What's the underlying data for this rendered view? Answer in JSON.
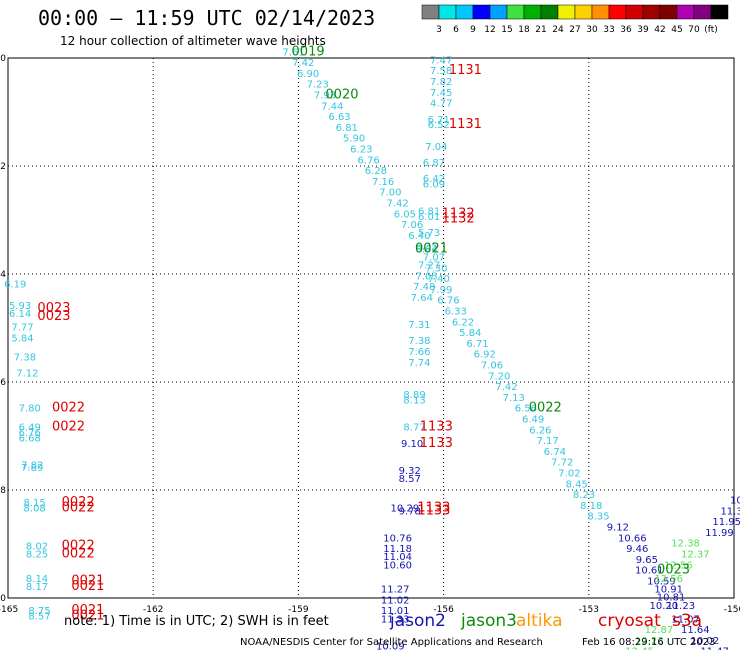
{
  "header": {
    "title": "00:00 — 11:59 UTC 02/14/2023",
    "subtitle": "12 hour collection of altimeter wave heights"
  },
  "colorbar": {
    "swatches": [
      "#808080",
      "#00e5e5",
      "#00c8ff",
      "#0000ff",
      "#00a0ff",
      "#40e040",
      "#00b000",
      "#008000",
      "#f0f000",
      "#ffd000",
      "#ff9000",
      "#ff0000",
      "#d00000",
      "#a00000",
      "#800000",
      "#b000b0",
      "#800080",
      "#000000"
    ],
    "labels": [
      "3",
      "6",
      "9",
      "12",
      "15",
      "18",
      "21",
      "24",
      "27",
      "30",
      "33",
      "36",
      "39",
      "42",
      "45",
      "70",
      "(ft)"
    ]
  },
  "axes": {
    "x_ticks": [
      "-165",
      "-162",
      "-159",
      "-156",
      "-153",
      "-150"
    ],
    "y_ticks": [
      "-40",
      "-42",
      "-44",
      "-46",
      "-48",
      "-50"
    ]
  },
  "colors": {
    "cyan": "#33c6e0",
    "darkblue": "#1414b4",
    "green": "#0a8c0a",
    "red": "#e00000",
    "lightgreen": "#55e055",
    "orange": "#ff9900",
    "magenta": "#cc0000"
  },
  "observations": [
    {
      "lon": -159.1,
      "lat": -39.95,
      "t": "7.61",
      "c": "cyan"
    },
    {
      "lon": -158.9,
      "lat": -40.15,
      "t": "7.42",
      "c": "cyan"
    },
    {
      "lon": -158.8,
      "lat": -40.35,
      "t": "6.90",
      "c": "cyan"
    },
    {
      "lon": -158.6,
      "lat": -40.55,
      "t": "7.23",
      "c": "cyan"
    },
    {
      "lon": -158.45,
      "lat": -40.75,
      "t": "7.93",
      "c": "cyan"
    },
    {
      "lon": -158.3,
      "lat": -40.95,
      "t": "7.44",
      "c": "cyan"
    },
    {
      "lon": -158.15,
      "lat": -41.15,
      "t": "6.63",
      "c": "cyan"
    },
    {
      "lon": -158.0,
      "lat": -41.35,
      "t": "6.81",
      "c": "cyan"
    },
    {
      "lon": -157.85,
      "lat": -41.55,
      "t": "5.90",
      "c": "cyan"
    },
    {
      "lon": -157.7,
      "lat": -41.75,
      "t": "6.23",
      "c": "cyan"
    },
    {
      "lon": -157.55,
      "lat": -41.95,
      "t": "6.76",
      "c": "cyan"
    },
    {
      "lon": -157.4,
      "lat": -42.15,
      "t": "6.28",
      "c": "cyan"
    },
    {
      "lon": -157.25,
      "lat": -42.35,
      "t": "7.16",
      "c": "cyan"
    },
    {
      "lon": -157.1,
      "lat": -42.55,
      "t": "7.00",
      "c": "cyan"
    },
    {
      "lon": -156.95,
      "lat": -42.75,
      "t": "7.42",
      "c": "cyan"
    },
    {
      "lon": -156.8,
      "lat": -42.95,
      "t": "6.05",
      "c": "cyan"
    },
    {
      "lon": -156.65,
      "lat": -43.15,
      "t": "7.06",
      "c": "cyan"
    },
    {
      "lon": -156.5,
      "lat": -43.35,
      "t": "6.40",
      "c": "cyan"
    },
    {
      "lon": -156.35,
      "lat": -43.55,
      "t": "6.35",
      "c": "cyan"
    },
    {
      "lon": -156.2,
      "lat": -43.75,
      "t": "7.07",
      "c": "cyan"
    },
    {
      "lon": -156.15,
      "lat": -43.95,
      "t": "7.30",
      "c": "cyan"
    },
    {
      "lon": -156.1,
      "lat": -44.15,
      "t": "7.40",
      "c": "cyan"
    },
    {
      "lon": -156.05,
      "lat": -44.35,
      "t": "7.99",
      "c": "cyan"
    },
    {
      "lon": -155.9,
      "lat": -44.55,
      "t": "6.76",
      "c": "cyan"
    },
    {
      "lon": -155.75,
      "lat": -44.75,
      "t": "6.33",
      "c": "cyan"
    },
    {
      "lon": -155.6,
      "lat": -44.95,
      "t": "6.22",
      "c": "cyan"
    },
    {
      "lon": -155.45,
      "lat": -45.15,
      "t": "5.84",
      "c": "cyan"
    },
    {
      "lon": -155.3,
      "lat": -45.35,
      "t": "6.71",
      "c": "cyan"
    },
    {
      "lon": -155.15,
      "lat": -45.55,
      "t": "6.92",
      "c": "cyan"
    },
    {
      "lon": -155.0,
      "lat": -45.75,
      "t": "7.06",
      "c": "cyan"
    },
    {
      "lon": -154.85,
      "lat": -45.95,
      "t": "7.20",
      "c": "cyan"
    },
    {
      "lon": -154.7,
      "lat": -46.15,
      "t": "7.42",
      "c": "cyan"
    },
    {
      "lon": -154.55,
      "lat": -46.35,
      "t": "7.13",
      "c": "cyan"
    },
    {
      "lon": -154.3,
      "lat": -46.55,
      "t": "6.56",
      "c": "cyan"
    },
    {
      "lon": -154.15,
      "lat": -46.75,
      "t": "6.49",
      "c": "cyan"
    },
    {
      "lon": -154.0,
      "lat": -46.95,
      "t": "6.26",
      "c": "cyan"
    },
    {
      "lon": -153.85,
      "lat": -47.15,
      "t": "7.17",
      "c": "cyan"
    },
    {
      "lon": -153.7,
      "lat": -47.35,
      "t": "6.74",
      "c": "cyan"
    },
    {
      "lon": -153.55,
      "lat": -47.55,
      "t": "7.72",
      "c": "cyan"
    },
    {
      "lon": -153.4,
      "lat": -47.75,
      "t": "7.02",
      "c": "cyan"
    },
    {
      "lon": -153.25,
      "lat": -47.95,
      "t": "8.45",
      "c": "cyan"
    },
    {
      "lon": -153.1,
      "lat": -48.15,
      "t": "8.23",
      "c": "cyan"
    },
    {
      "lon": -152.95,
      "lat": -48.35,
      "t": "8.18",
      "c": "cyan"
    },
    {
      "lon": -152.8,
      "lat": -48.55,
      "t": "8.35",
      "c": "cyan"
    },
    {
      "lon": -152.4,
      "lat": -48.75,
      "t": "9.12",
      "c": "darkblue"
    },
    {
      "lon": -152.1,
      "lat": -48.95,
      "t": "10.66",
      "c": "darkblue"
    },
    {
      "lon": -152.0,
      "lat": -49.15,
      "t": "9.46",
      "c": "darkblue"
    },
    {
      "lon": -151.8,
      "lat": -49.35,
      "t": "9.65",
      "c": "darkblue"
    },
    {
      "lon": -151.75,
      "lat": -49.55,
      "t": "10.61",
      "c": "darkblue"
    },
    {
      "lon": -151.5,
      "lat": -49.75,
      "t": "10.59",
      "c": "darkblue"
    },
    {
      "lon": -151.35,
      "lat": -49.9,
      "t": "10.91",
      "c": "darkblue"
    },
    {
      "lon": -151.3,
      "lat": -50.05,
      "t": "10.81",
      "c": "darkblue"
    },
    {
      "lon": -151.45,
      "lat": -50.2,
      "t": "10.20",
      "c": "darkblue"
    },
    {
      "lon": -151.1,
      "lat": -50.2,
      "t": "11.23",
      "c": "darkblue"
    },
    {
      "lon": -151.0,
      "lat": -50.45,
      "t": "11.07",
      "c": "darkblue"
    },
    {
      "lon": -150.8,
      "lat": -50.65,
      "t": "11.64",
      "c": "darkblue"
    },
    {
      "lon": -150.6,
      "lat": -50.85,
      "t": "10.02",
      "c": "darkblue"
    },
    {
      "lon": -150.4,
      "lat": -51.05,
      "t": "11.47",
      "c": "darkblue"
    },
    {
      "lon": -152.6,
      "lat": -51.15,
      "t": "11.98",
      "c": "darkblue"
    },
    {
      "lon": -150.3,
      "lat": -48.85,
      "t": "11.99",
      "c": "darkblue"
    },
    {
      "lon": -150.15,
      "lat": -48.65,
      "t": "11.95",
      "c": "darkblue"
    },
    {
      "lon": -150.05,
      "lat": -48.45,
      "t": "11.3",
      "c": "darkblue"
    },
    {
      "lon": -149.95,
      "lat": -48.25,
      "t": "10",
      "c": "darkblue"
    },
    {
      "lon": -151.0,
      "lat": -49.05,
      "t": "12.38",
      "c": "lightgreen"
    },
    {
      "lon": -150.8,
      "lat": -49.25,
      "t": "12.37",
      "c": "lightgreen"
    },
    {
      "lon": -151.15,
      "lat": -49.45,
      "t": "12.56",
      "c": "lightgreen"
    },
    {
      "lon": -151.35,
      "lat": -49.7,
      "t": "12.56",
      "c": "lightgreen"
    },
    {
      "lon": -151.55,
      "lat": -50.65,
      "t": "12.87",
      "c": "lightgreen"
    },
    {
      "lon": -151.75,
      "lat": -50.85,
      "t": "12.23",
      "c": "lightgreen"
    },
    {
      "lon": -151.95,
      "lat": -51.05,
      "t": "12.45",
      "c": "lightgreen"
    },
    {
      "lon": -150.25,
      "lat": -51.25,
      "t": "12.83",
      "c": "lightgreen"
    },
    {
      "lon": -156.05,
      "lat": -40.1,
      "t": "7.47",
      "c": "cyan"
    },
    {
      "lon": -156.05,
      "lat": -40.3,
      "t": "7.58",
      "c": "cyan"
    },
    {
      "lon": -156.05,
      "lat": -40.5,
      "t": "7.82",
      "c": "cyan"
    },
    {
      "lon": -156.05,
      "lat": -40.7,
      "t": "7.45",
      "c": "cyan"
    },
    {
      "lon": -156.05,
      "lat": -40.9,
      "t": "4.77",
      "c": "cyan"
    },
    {
      "lon": -156.1,
      "lat": -41.2,
      "t": "6.71",
      "c": "cyan"
    },
    {
      "lon": -156.1,
      "lat": -41.3,
      "t": "6.52",
      "c": "cyan"
    },
    {
      "lon": -156.15,
      "lat": -41.7,
      "t": "7.04",
      "c": "cyan"
    },
    {
      "lon": -156.2,
      "lat": -42.0,
      "t": "6.87",
      "c": "cyan"
    },
    {
      "lon": -156.2,
      "lat": -42.3,
      "t": "6.42",
      "c": "cyan"
    },
    {
      "lon": -156.2,
      "lat": -42.4,
      "t": "6.09",
      "c": "cyan"
    },
    {
      "lon": -156.3,
      "lat": -42.9,
      "t": "6.81",
      "c": "cyan"
    },
    {
      "lon": -156.3,
      "lat": -43.0,
      "t": "6.01",
      "c": "cyan"
    },
    {
      "lon": -156.3,
      "lat": -43.3,
      "t": "5.73",
      "c": "cyan"
    },
    {
      "lon": -156.35,
      "lat": -43.6,
      "t": "6.64",
      "c": "cyan"
    },
    {
      "lon": -156.3,
      "lat": -43.9,
      "t": "7.27",
      "c": "cyan"
    },
    {
      "lon": -156.35,
      "lat": -44.1,
      "t": "7.03",
      "c": "cyan"
    },
    {
      "lon": -156.4,
      "lat": -44.3,
      "t": "7.48",
      "c": "cyan"
    },
    {
      "lon": -156.45,
      "lat": -44.5,
      "t": "7.64",
      "c": "cyan"
    },
    {
      "lon": -156.5,
      "lat": -45.0,
      "t": "7.31",
      "c": "cyan"
    },
    {
      "lon": -156.5,
      "lat": -45.3,
      "t": "7.38",
      "c": "cyan"
    },
    {
      "lon": -156.5,
      "lat": -45.5,
      "t": "7.66",
      "c": "cyan"
    },
    {
      "lon": -156.5,
      "lat": -45.7,
      "t": "7.74",
      "c": "cyan"
    },
    {
      "lon": -156.6,
      "lat": -46.3,
      "t": "8.89",
      "c": "cyan"
    },
    {
      "lon": -156.6,
      "lat": -46.4,
      "t": "8.13",
      "c": "cyan"
    },
    {
      "lon": -156.6,
      "lat": -46.9,
      "t": "8.77",
      "c": "cyan"
    },
    {
      "lon": -156.65,
      "lat": -47.2,
      "t": "9.10",
      "c": "darkblue"
    },
    {
      "lon": -156.7,
      "lat": -47.7,
      "t": "9.32",
      "c": "darkblue"
    },
    {
      "lon": -156.7,
      "lat": -47.85,
      "t": "8.57",
      "c": "darkblue"
    },
    {
      "lon": -156.8,
      "lat": -48.4,
      "t": "10.29",
      "c": "darkblue"
    },
    {
      "lon": -156.7,
      "lat": -48.45,
      "t": "9.78",
      "c": "darkblue"
    },
    {
      "lon": -156.95,
      "lat": -48.95,
      "t": "10.76",
      "c": "darkblue"
    },
    {
      "lon": -156.95,
      "lat": -49.15,
      "t": "11.18",
      "c": "darkblue"
    },
    {
      "lon": -156.95,
      "lat": -49.3,
      "t": "11.04",
      "c": "darkblue"
    },
    {
      "lon": -156.95,
      "lat": -49.45,
      "t": "10.60",
      "c": "darkblue"
    },
    {
      "lon": -157.0,
      "lat": -49.9,
      "t": "11.27",
      "c": "darkblue"
    },
    {
      "lon": -157.0,
      "lat": -50.1,
      "t": "11.02",
      "c": "darkblue"
    },
    {
      "lon": -157.0,
      "lat": -50.3,
      "t": "11.01",
      "c": "darkblue"
    },
    {
      "lon": -157.0,
      "lat": -50.45,
      "t": "11.33",
      "c": "darkblue"
    },
    {
      "lon": -157.1,
      "lat": -50.95,
      "t": "10.09",
      "c": "darkblue"
    },
    {
      "lon": -157.1,
      "lat": -51.25,
      "t": "10.89",
      "c": "darkblue"
    },
    {
      "lon": -164.85,
      "lat": -44.25,
      "t": "6.19",
      "c": "cyan"
    },
    {
      "lon": -164.75,
      "lat": -44.65,
      "t": "5.93",
      "c": "cyan"
    },
    {
      "lon": -164.75,
      "lat": -44.8,
      "t": "6.14",
      "c": "cyan"
    },
    {
      "lon": -164.7,
      "lat": -45.05,
      "t": "7.77",
      "c": "cyan"
    },
    {
      "lon": -164.7,
      "lat": -45.25,
      "t": "5.84",
      "c": "cyan"
    },
    {
      "lon": -164.65,
      "lat": -45.6,
      "t": "7.38",
      "c": "cyan"
    },
    {
      "lon": -164.6,
      "lat": -45.9,
      "t": "7.12",
      "c": "cyan"
    },
    {
      "lon": -164.55,
      "lat": -46.55,
      "t": "7.80",
      "c": "cyan"
    },
    {
      "lon": -164.55,
      "lat": -46.9,
      "t": "6.49",
      "c": "cyan"
    },
    {
      "lon": -164.55,
      "lat": -47.0,
      "t": "6.76",
      "c": "cyan"
    },
    {
      "lon": -164.55,
      "lat": -47.1,
      "t": "6.68",
      "c": "cyan"
    },
    {
      "lon": -164.5,
      "lat": -47.6,
      "t": "7.82",
      "c": "cyan"
    },
    {
      "lon": -164.5,
      "lat": -47.65,
      "t": "7.89",
      "c": "cyan"
    },
    {
      "lon": -164.45,
      "lat": -48.3,
      "t": "8.15",
      "c": "cyan"
    },
    {
      "lon": -164.45,
      "lat": -48.4,
      "t": "8.08",
      "c": "cyan"
    },
    {
      "lon": -164.4,
      "lat": -49.1,
      "t": "8.02",
      "c": "cyan"
    },
    {
      "lon": -164.4,
      "lat": -49.25,
      "t": "8.25",
      "c": "cyan"
    },
    {
      "lon": -164.4,
      "lat": -49.7,
      "t": "8.14",
      "c": "cyan"
    },
    {
      "lon": -164.4,
      "lat": -49.85,
      "t": "8.17",
      "c": "cyan"
    },
    {
      "lon": -164.35,
      "lat": -50.3,
      "t": "8.75",
      "c": "cyan"
    },
    {
      "lon": -164.35,
      "lat": -50.4,
      "t": "8.57",
      "c": "cyan"
    },
    {
      "lon": -164.3,
      "lat": -51.1,
      "t": "7.76",
      "c": "cyan"
    }
  ],
  "time_labels": [
    {
      "lon": -158.8,
      "lat": -39.95,
      "t": "0019",
      "c": "green"
    },
    {
      "lon": -158.1,
      "lat": -40.75,
      "t": "0020",
      "c": "green"
    },
    {
      "lon": -156.25,
      "lat": -43.6,
      "t": "0021",
      "c": "green"
    },
    {
      "lon": -153.9,
      "lat": -46.55,
      "t": "0022",
      "c": "green"
    },
    {
      "lon": -151.25,
      "lat": -49.55,
      "t": "0023",
      "c": "green"
    },
    {
      "lon": -151.45,
      "lat": -51.15,
      "t": "0814",
      "c": "green"
    },
    {
      "lon": -155.55,
      "lat": -40.3,
      "t": "1131",
      "c": "red"
    },
    {
      "lon": -155.55,
      "lat": -41.3,
      "t": "1131",
      "c": "red"
    },
    {
      "lon": -155.7,
      "lat": -42.95,
      "t": "1132",
      "c": "red"
    },
    {
      "lon": -155.7,
      "lat": -43.05,
      "t": "1132",
      "c": "red"
    },
    {
      "lon": -156.15,
      "lat": -46.9,
      "t": "1133",
      "c": "red"
    },
    {
      "lon": -156.15,
      "lat": -47.2,
      "t": "1133",
      "c": "red"
    },
    {
      "lon": -156.2,
      "lat": -48.4,
      "t": "1133",
      "c": "red"
    },
    {
      "lon": -156.2,
      "lat": -48.45,
      "t": "1133",
      "c": "red"
    },
    {
      "lon": -156.4,
      "lat": -51.25,
      "t": "1134",
      "c": "red"
    },
    {
      "lon": -164.05,
      "lat": -44.7,
      "t": "0023",
      "c": "red"
    },
    {
      "lon": -164.05,
      "lat": -44.85,
      "t": "0023",
      "c": "red"
    },
    {
      "lon": -163.75,
      "lat": -46.55,
      "t": "0022",
      "c": "red"
    },
    {
      "lon": -163.75,
      "lat": -46.9,
      "t": "0022",
      "c": "red"
    },
    {
      "lon": -163.55,
      "lat": -48.3,
      "t": "0022",
      "c": "red"
    },
    {
      "lon": -163.55,
      "lat": -48.4,
      "t": "0022",
      "c": "red"
    },
    {
      "lon": -163.55,
      "lat": -49.1,
      "t": "0022",
      "c": "red"
    },
    {
      "lon": -163.55,
      "lat": -49.25,
      "t": "0022",
      "c": "red"
    },
    {
      "lon": -163.35,
      "lat": -49.75,
      "t": "0021",
      "c": "red"
    },
    {
      "lon": -163.35,
      "lat": -49.85,
      "t": "0021",
      "c": "red"
    },
    {
      "lon": -163.35,
      "lat": -50.3,
      "t": "0021",
      "c": "red"
    },
    {
      "lon": -163.35,
      "lat": -50.4,
      "t": "0021",
      "c": "red"
    }
  ],
  "footer": {
    "note": "note:  1) Time is in UTC;  2) SWH is in feet",
    "legend": [
      {
        "name": "jason2",
        "c": "darkblue"
      },
      {
        "name": "jason3",
        "c": "green"
      },
      {
        "name": "altika",
        "c": "orange"
      },
      {
        "name": "cryosat",
        "c": "red"
      },
      {
        "name": "s3a",
        "c": "magenta"
      }
    ],
    "credit": "NOAA/NESDIS Center for Satellite Applications and Research",
    "timestamp": "Feb 16 08:29:16 UTC 2023"
  }
}
